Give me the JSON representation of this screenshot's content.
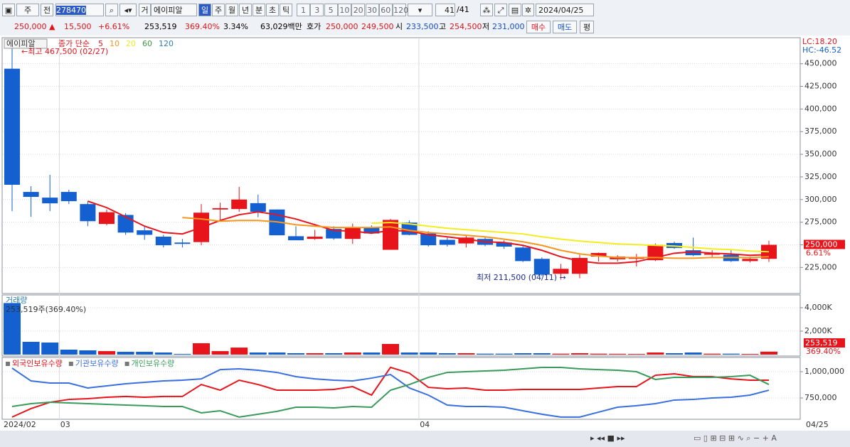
{
  "toolbar": {
    "period": "주",
    "prev": "전",
    "code": "278470",
    "mode": "거",
    "name": "에이피알",
    "intervals": [
      "일",
      "주",
      "월",
      "년",
      "분",
      "초",
      "틱"
    ],
    "numbers": [
      "1",
      "3",
      "5",
      "10",
      "20",
      "30",
      "60",
      "120"
    ],
    "count": "41",
    "total": "/41",
    "date": "2024/04/25"
  },
  "quote": {
    "price": "250,000 ▲",
    "change": "15,500",
    "change_pct": "+6.61%",
    "volume": "253,519",
    "volume_pct": "369.40%",
    "turnover": "3.34%",
    "amount": "63,029백만",
    "bid_label": "호가",
    "ask": "250,000",
    "bid": "249,500",
    "open_label": "시",
    "open": "233,500",
    "high_label": "고",
    "high": "254,500",
    "low_label": "저",
    "low": "231,000",
    "buy": "매수",
    "sell": "매도",
    "avg": "평"
  },
  "chart_data": [
    {
      "type": "candlestick",
      "legend_title": "에이피알",
      "ma_label": "종가 단순",
      "up_color": "#e8141b",
      "down_color": "#1560d0",
      "grid": true,
      "categories": [
        "2024/02",
        null,
        null,
        "03",
        null,
        null,
        null,
        null,
        null,
        null,
        null,
        null,
        null,
        null,
        null,
        null,
        null,
        null,
        null,
        null,
        null,
        null,
        "04",
        null,
        null,
        null,
        null,
        null,
        null,
        null,
        null,
        null,
        null,
        null,
        null,
        null,
        null,
        null,
        null,
        null,
        null
      ],
      "last_date": "04/25",
      "open": [
        444500,
        308400,
        302100,
        308400,
        295000,
        273000,
        283000,
        266000,
        259000,
        252500,
        253000,
        289000,
        289500,
        296000,
        289000,
        259500,
        256500,
        267500,
        256500,
        269000,
        244500,
        274500,
        262500,
        255500,
        251500,
        256500,
        252500,
        247000,
        234500,
        218000,
        218000,
        237000,
        234000,
        234500,
        233000,
        252000,
        244000,
        239000,
        239000,
        232000,
        234500
      ],
      "high": [
        467500,
        314700,
        327300,
        310800,
        298200,
        289000,
        285000,
        270500,
        261000,
        256500,
        295000,
        296500,
        314000,
        305500,
        289000,
        270500,
        266500,
        270500,
        273500,
        271500,
        278500,
        277000,
        265000,
        258000,
        260500,
        259000,
        255000,
        248500,
        236000,
        229000,
        239000,
        241500,
        238500,
        240000,
        251500,
        253500,
        258000,
        244000,
        244500,
        237000,
        254500
      ],
      "low": [
        287200,
        280900,
        287200,
        295000,
        270600,
        271500,
        261000,
        255500,
        247000,
        247000,
        249500,
        277000,
        286500,
        280500,
        260500,
        255000,
        255500,
        255500,
        251000,
        262000,
        244500,
        260500,
        248000,
        248000,
        247000,
        248500,
        245500,
        231000,
        215500,
        211500,
        213000,
        231500,
        231500,
        226000,
        232000,
        245500,
        237500,
        235500,
        231000,
        230500,
        231000
      ],
      "close": [
        316300,
        302900,
        295800,
        298200,
        276100,
        286000,
        263500,
        261000,
        249500,
        251000,
        285500,
        290500,
        300000,
        286500,
        260500,
        255000,
        259000,
        257000,
        269000,
        262500,
        277500,
        261000,
        249500,
        250000,
        258000,
        250000,
        248000,
        232000,
        217000,
        223500,
        235500,
        241000,
        237000,
        236500,
        250000,
        246500,
        238500,
        240500,
        232000,
        234500,
        250000
      ],
      "series": [
        {
          "name": "5",
          "color": "#e8141b",
          "values": [
            null,
            null,
            null,
            null,
            298200,
            291100,
            280900,
            270600,
            263600,
            262000,
            269100,
            276900,
            283200,
            286400,
            283200,
            278500,
            272200,
            265900,
            265100,
            262800,
            265900,
            265100,
            261200,
            258800,
            256300,
            253300,
            252500,
            249400,
            243900,
            236800,
            232100,
            229700,
            229700,
            231300,
            236000,
            240700,
            242300,
            240700,
            239900,
            238400,
            239200
          ]
        },
        {
          "name": "10",
          "color": "#f5961e",
          "values": [
            null,
            null,
            null,
            null,
            null,
            null,
            null,
            null,
            null,
            280100,
            278500,
            276100,
            276900,
            276900,
            275400,
            272200,
            270600,
            269100,
            269100,
            269100,
            269800,
            265900,
            263600,
            262000,
            260500,
            258800,
            256300,
            253300,
            249400,
            243900,
            240000,
            237600,
            236000,
            236000,
            236000,
            235200,
            235200,
            236000,
            236000,
            236000,
            236800
          ]
        },
        {
          "name": "20",
          "color": "#f5ec1e",
          "values": [
            null,
            null,
            null,
            null,
            null,
            null,
            null,
            null,
            null,
            null,
            null,
            null,
            null,
            null,
            null,
            null,
            null,
            null,
            null,
            273800,
            274600,
            273000,
            270600,
            268300,
            266700,
            265100,
            263600,
            262000,
            258800,
            256300,
            254100,
            252500,
            251000,
            250200,
            249400,
            248600,
            247000,
            245500,
            244700,
            243100,
            242300
          ]
        },
        {
          "name": "60",
          "color": "#3c9a3c",
          "values": [
            null,
            null,
            null,
            null,
            null,
            null,
            null,
            null,
            null,
            null,
            null,
            null,
            null,
            null,
            null,
            null,
            null,
            null,
            null,
            null,
            null,
            null,
            null,
            null,
            null,
            null,
            null,
            null,
            null,
            null,
            null,
            null,
            null,
            null,
            null,
            null,
            null,
            null,
            null,
            null,
            null
          ]
        },
        {
          "name": "120",
          "color": "#2a7fb0",
          "values": [
            null,
            null,
            null,
            null,
            null,
            null,
            null,
            null,
            null,
            null,
            null,
            null,
            null,
            null,
            null,
            null,
            null,
            null,
            null,
            null,
            null,
            null,
            null,
            null,
            null,
            null,
            null,
            null,
            null,
            null,
            null,
            null,
            null,
            null,
            null,
            null,
            null,
            null,
            null,
            null,
            null
          ]
        }
      ],
      "annotations": [
        {
          "text": "←최고 467,500 (02/27)"
        },
        {
          "text": "최저 211,500 (04/11) →"
        }
      ],
      "ylim": [
        197000,
        478000
      ],
      "yticks": [
        {
          "value": 225000,
          "label": "225,000"
        },
        {
          "value": 250000,
          "label": "250,000"
        },
        {
          "value": 275000,
          "label": "275,000"
        },
        {
          "value": 300000,
          "label": "300,000"
        },
        {
          "value": 325000,
          "label": "325,000"
        },
        {
          "value": 350000,
          "label": "350,000"
        },
        {
          "value": 375000,
          "label": "375,000"
        },
        {
          "value": 400000,
          "label": "400,000"
        },
        {
          "value": 425000,
          "label": "425,000"
        },
        {
          "value": 450000,
          "label": "450,000"
        }
      ],
      "lc": "LC:18.20",
      "hc": "HC:-46.52",
      "price_label": "250,000",
      "change_label": "6.61%"
    },
    {
      "type": "bar",
      "title": "거래량",
      "label": "253,519주(369.40%)",
      "values": [
        4400000,
        1090000,
        1030000,
        424000,
        364000,
        300000,
        240000,
        240000,
        180000,
        60000,
        970000,
        300000,
        600000,
        180000,
        180000,
        120000,
        120000,
        120000,
        180000,
        180000,
        910000,
        180000,
        180000,
        120000,
        120000,
        80000,
        80000,
        120000,
        120000,
        80000,
        120000,
        80000,
        70000,
        60000,
        180000,
        120000,
        180000,
        80000,
        80000,
        60000,
        253519
      ],
      "ylim": [
        0,
        5030000
      ],
      "yticks": [
        {
          "value": 2000000,
          "label": "2,000K"
        },
        {
          "value": 4000000,
          "label": "4,000K"
        }
      ],
      "last_label": "253,519",
      "last_pct": "369.40%"
    },
    {
      "type": "line",
      "series": [
        {
          "name": "외국인보유수량",
          "color": "#e8141b",
          "values": [
            568000,
            649000,
            709000,
            736000,
            743000,
            757000,
            764000,
            757000,
            764000,
            764000,
            878000,
            824000,
            919000,
            878000,
            824000,
            824000,
            824000,
            831000,
            858000,
            777000,
            1041000,
            986000,
            851000,
            838000,
            845000,
            824000,
            824000,
            831000,
            831000,
            831000,
            831000,
            845000,
            858000,
            858000,
            966000,
            980000,
            953000,
            953000,
            932000,
            919000,
            919000
          ]
        },
        {
          "name": "기관보유수량",
          "color": "#3a6fe0",
          "values": [
            1034000,
            912000,
            892000,
            892000,
            845000,
            865000,
            885000,
            899000,
            912000,
            919000,
            932000,
            1020000,
            1027000,
            1014000,
            993000,
            953000,
            932000,
            919000,
            912000,
            939000,
            973000,
            845000,
            777000,
            682000,
            669000,
            669000,
            662000,
            628000,
            595000,
            568000,
            568000,
            615000,
            662000,
            676000,
            696000,
            730000,
            736000,
            750000,
            757000,
            777000,
            824000
          ]
        },
        {
          "name": "개인보유수량",
          "color": "#3a9a5a",
          "values": [
            669000,
            696000,
            709000,
            703000,
            696000,
            689000,
            682000,
            676000,
            669000,
            669000,
            608000,
            628000,
            568000,
            595000,
            622000,
            662000,
            662000,
            655000,
            669000,
            662000,
            824000,
            878000,
            946000,
            993000,
            1000000,
            1007000,
            1014000,
            1027000,
            1041000,
            1041000,
            1027000,
            1020000,
            1014000,
            1000000,
            926000,
            946000,
            946000,
            946000,
            953000,
            966000,
            878000
          ]
        }
      ],
      "ylim": [
        547000,
        1122000
      ],
      "yticks": [
        {
          "value": 750000,
          "label": "750,000"
        },
        {
          "value": 1000000,
          "label": "1,000,000"
        }
      ]
    }
  ]
}
